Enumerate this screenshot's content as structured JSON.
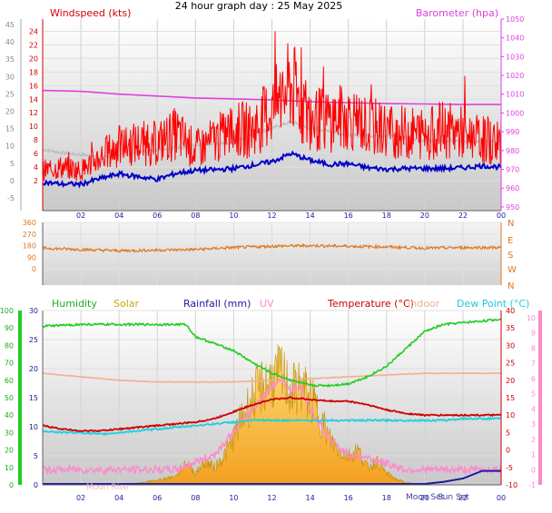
{
  "page_title": "24 hour graph day : 25 May 2025",
  "colors": {
    "wind": "#ff0000",
    "wind_avg": "#0000c8",
    "baro": "#e040e0",
    "temp_hist": "#c0c0c0",
    "direction": "#e07820",
    "humidity": "#22cc22",
    "solar": "#d8b000",
    "rainfall": "#1a1aa0",
    "uv": "#ff88cc",
    "temperature": "#cc0000",
    "indoor": "#f0b090",
    "dewpoint": "#20d0e0"
  },
  "chart_data": [
    {
      "type": "line",
      "title": "",
      "legend": [
        "Windspeed (kts)",
        "Barometer (hpa)"
      ],
      "x_ticks": [
        "02",
        "04",
        "06",
        "08",
        "10",
        "12",
        "14",
        "16",
        "18",
        "20",
        "22",
        "00"
      ],
      "left_outer_ticks": [
        "-5",
        "0",
        "5",
        "10",
        "15",
        "20",
        "25",
        "30",
        "35",
        "40",
        "45"
      ],
      "left_ticks": [
        "2",
        "4",
        "6",
        "8",
        "10",
        "12",
        "14",
        "16",
        "18",
        "20",
        "22",
        "24"
      ],
      "right_ticks": [
        "950",
        "960",
        "970",
        "980",
        "990",
        "1000",
        "1010",
        "1020",
        "1030",
        "1040",
        "1050"
      ],
      "ylim_outer": [
        -5,
        45
      ],
      "ylim_wind": [
        0,
        25
      ],
      "ylim_baro": [
        948,
        1050
      ],
      "grid": true,
      "series": [
        {
          "name": "Windspeed (kts)",
          "x": [
            0,
            1,
            2,
            3,
            4,
            5,
            6,
            7,
            8,
            9,
            10,
            11,
            12,
            13,
            14,
            15,
            16,
            17,
            18,
            19,
            20,
            21,
            22,
            23,
            24
          ],
          "values": [
            3.5,
            4,
            3.5,
            5.5,
            7,
            7.5,
            7.5,
            9,
            6.5,
            8,
            9.5,
            9.5,
            12.5,
            16,
            11,
            11,
            11.5,
            10,
            9.5,
            9,
            9,
            9.5,
            9,
            8,
            7.5
          ]
        },
        {
          "name": "Windspeed average",
          "x": [
            0,
            1,
            2,
            3,
            4,
            5,
            6,
            7,
            8,
            9,
            10,
            11,
            12,
            13,
            14,
            15,
            16,
            17,
            18,
            19,
            20,
            21,
            22,
            23,
            24
          ],
          "values": [
            1.8,
            1.5,
            1.5,
            2.3,
            3,
            2.6,
            2.2,
            3.1,
            3.5,
            3.6,
            3.8,
            4.3,
            4.8,
            6,
            5,
            4.4,
            4.5,
            3.9,
            3.7,
            3.8,
            3.8,
            3.8,
            3.9,
            4.2,
            4
          ]
        },
        {
          "name": "Barometer (hpa)",
          "x": [
            0,
            2,
            4,
            6,
            8,
            10,
            12,
            14,
            16,
            18,
            20,
            22,
            24
          ],
          "values": [
            1012,
            1011.5,
            1010,
            1009,
            1008,
            1007.5,
            1007,
            1006,
            1005.5,
            1005,
            1004.8,
            1004.5,
            1004.5
          ]
        },
        {
          "name": "Temperature (grey trace, outer scale)",
          "x": [
            0,
            1,
            2,
            3,
            4,
            5,
            6,
            7,
            8,
            9,
            10,
            11,
            12,
            13,
            14,
            15,
            16,
            17,
            18,
            19,
            20,
            21,
            22,
            23,
            24
          ],
          "values": [
            9,
            8,
            7.5,
            7,
            7.5,
            8,
            9,
            9.5,
            10,
            10.5,
            11,
            13.5,
            15,
            17,
            15,
            14.5,
            13,
            13,
            13,
            12.5,
            11.5,
            11.5,
            11.5,
            11.5,
            11
          ]
        }
      ]
    },
    {
      "type": "line",
      "title": "",
      "left_ticks": [
        "0",
        "90",
        "180",
        "270",
        "360"
      ],
      "right_ticks": [
        "N",
        "W",
        "S",
        "E",
        "N"
      ],
      "right_top_tick": "N",
      "ylim": [
        0,
        360
      ],
      "grid": true,
      "series": [
        {
          "name": "Wind direction",
          "x": [
            0,
            2,
            4,
            6,
            8,
            10,
            12,
            14,
            16,
            18,
            20,
            22,
            24
          ],
          "values": [
            160,
            150,
            140,
            145,
            150,
            165,
            175,
            180,
            175,
            170,
            160,
            165,
            165
          ]
        }
      ]
    },
    {
      "type": "line",
      "title": "",
      "legend": [
        "Humidity",
        "Solar",
        "Rainfall (mm)",
        "UV",
        "Temperature (°C)",
        "Indoor",
        "Dew Point (°C)"
      ],
      "left_humidity_ticks": [
        "0",
        "10",
        "20",
        "30",
        "40",
        "50",
        "60",
        "70",
        "80",
        "90",
        "100"
      ],
      "left_solar_ticks": [
        "0",
        "5",
        "10",
        "15",
        "20",
        "25",
        "30"
      ],
      "right_temp_ticks": [
        "-10",
        "-5",
        "0",
        "5",
        "10",
        "15",
        "20",
        "25",
        "30",
        "35",
        "40"
      ],
      "right_uv_ticks": [
        "-1",
        "0",
        "1",
        "2",
        "3",
        "4",
        "5",
        "6",
        "7",
        "8",
        "9",
        "10"
      ],
      "annotations": [
        "Moon Rise",
        "Moon Set",
        "Sun Set"
      ],
      "ylim_humidity": [
        0,
        100
      ],
      "ylim_temp": [
        -10,
        40
      ],
      "grid": true,
      "series": [
        {
          "name": "Humidity",
          "x": [
            0,
            2,
            4,
            6,
            7.5,
            8,
            9,
            10,
            11,
            12,
            13,
            14,
            15,
            16,
            17,
            18,
            19,
            20,
            21,
            22,
            23,
            24
          ],
          "values": [
            91,
            92,
            92,
            92,
            92,
            85,
            81,
            77,
            70,
            64,
            60,
            57,
            57,
            58,
            62,
            68,
            78,
            88,
            92,
            93,
            94,
            95
          ]
        },
        {
          "name": "Temperature (°C)",
          "x": [
            0,
            1,
            2,
            3,
            4,
            5,
            6,
            7,
            8,
            9,
            10,
            11,
            12,
            13,
            14,
            15,
            16,
            17,
            18,
            19,
            20,
            21,
            22,
            23,
            24
          ],
          "values": [
            7,
            6,
            5.5,
            5.5,
            6,
            6.5,
            7,
            7.5,
            8,
            9,
            11,
            13,
            14.5,
            15,
            14.5,
            14,
            14,
            13,
            11.5,
            10.5,
            10,
            10,
            10,
            10,
            10
          ]
        },
        {
          "name": "Indoor",
          "x": [
            0,
            2,
            4,
            6,
            8,
            10,
            12,
            14,
            16,
            18,
            20,
            22,
            24
          ],
          "values": [
            22,
            21,
            20,
            19.5,
            19.5,
            19.5,
            20,
            20.5,
            21,
            21.5,
            22,
            22,
            22
          ]
        },
        {
          "name": "Dew Point (°C)",
          "x": [
            0,
            1,
            2,
            3,
            4,
            5,
            6,
            7,
            8,
            9,
            10,
            11,
            12,
            13,
            14,
            15,
            16,
            17,
            18,
            19,
            20,
            21,
            22,
            23,
            24
          ],
          "values": [
            5.5,
            5,
            5,
            4.5,
            5,
            5.5,
            6,
            6.5,
            7,
            7.5,
            8,
            8.5,
            8.5,
            8.5,
            8.5,
            8.5,
            8.5,
            8.5,
            8.5,
            8.5,
            8.5,
            8.5,
            9,
            9,
            9
          ]
        },
        {
          "name": "Solar",
          "x": [
            0,
            1,
            2,
            3,
            4,
            5,
            6,
            7,
            7.5,
            8,
            8.5,
            9,
            9.5,
            10,
            10.5,
            11,
            11.5,
            12,
            12.5,
            13,
            13.5,
            14,
            14.5,
            15,
            15.5,
            16,
            16.5,
            17,
            17.5,
            18,
            18.5,
            19,
            20,
            24
          ],
          "values": [
            0,
            0,
            0,
            0,
            0.2,
            0.3,
            0.8,
            1.5,
            4,
            2,
            4,
            3,
            5,
            8,
            12,
            15,
            17,
            18,
            19,
            16,
            17,
            15,
            12,
            8,
            6,
            5,
            6,
            3,
            4,
            2,
            1,
            0.4,
            0,
            0
          ]
        },
        {
          "name": "UV",
          "x": [
            0,
            7,
            8,
            9,
            10,
            11,
            12,
            12.5,
            13,
            13.5,
            14,
            15,
            16,
            17,
            18,
            19,
            24
          ],
          "values": [
            0,
            0,
            0.5,
            1,
            2.5,
            4,
            5.5,
            6,
            5.2,
            5.5,
            4,
            2,
            1,
            0.8,
            0.4,
            0,
            0
          ]
        },
        {
          "name": "Rainfall (mm)",
          "x": [
            0,
            19,
            20,
            21,
            22,
            23,
            24
          ],
          "values": [
            0,
            0,
            0,
            0.1,
            0.25,
            0.6,
            0.6
          ]
        }
      ]
    }
  ]
}
